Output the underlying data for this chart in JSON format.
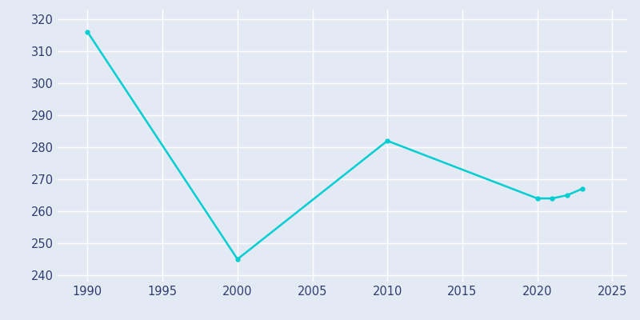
{
  "years": [
    1990,
    2000,
    2010,
    2020,
    2021,
    2022,
    2023
  ],
  "population": [
    316,
    245,
    282,
    264,
    264,
    265,
    267
  ],
  "line_color": "#00CED1",
  "marker_color": "#00CED1",
  "bg_color": "#E4EAF4",
  "plot_bg_color": "#E4EAF4",
  "grid_color": "#FFFFFF",
  "xlim": [
    1988,
    2026
  ],
  "ylim": [
    238,
    323
  ],
  "xticks": [
    1990,
    1995,
    2000,
    2005,
    2010,
    2015,
    2020,
    2025
  ],
  "yticks": [
    240,
    250,
    260,
    270,
    280,
    290,
    300,
    310,
    320
  ]
}
